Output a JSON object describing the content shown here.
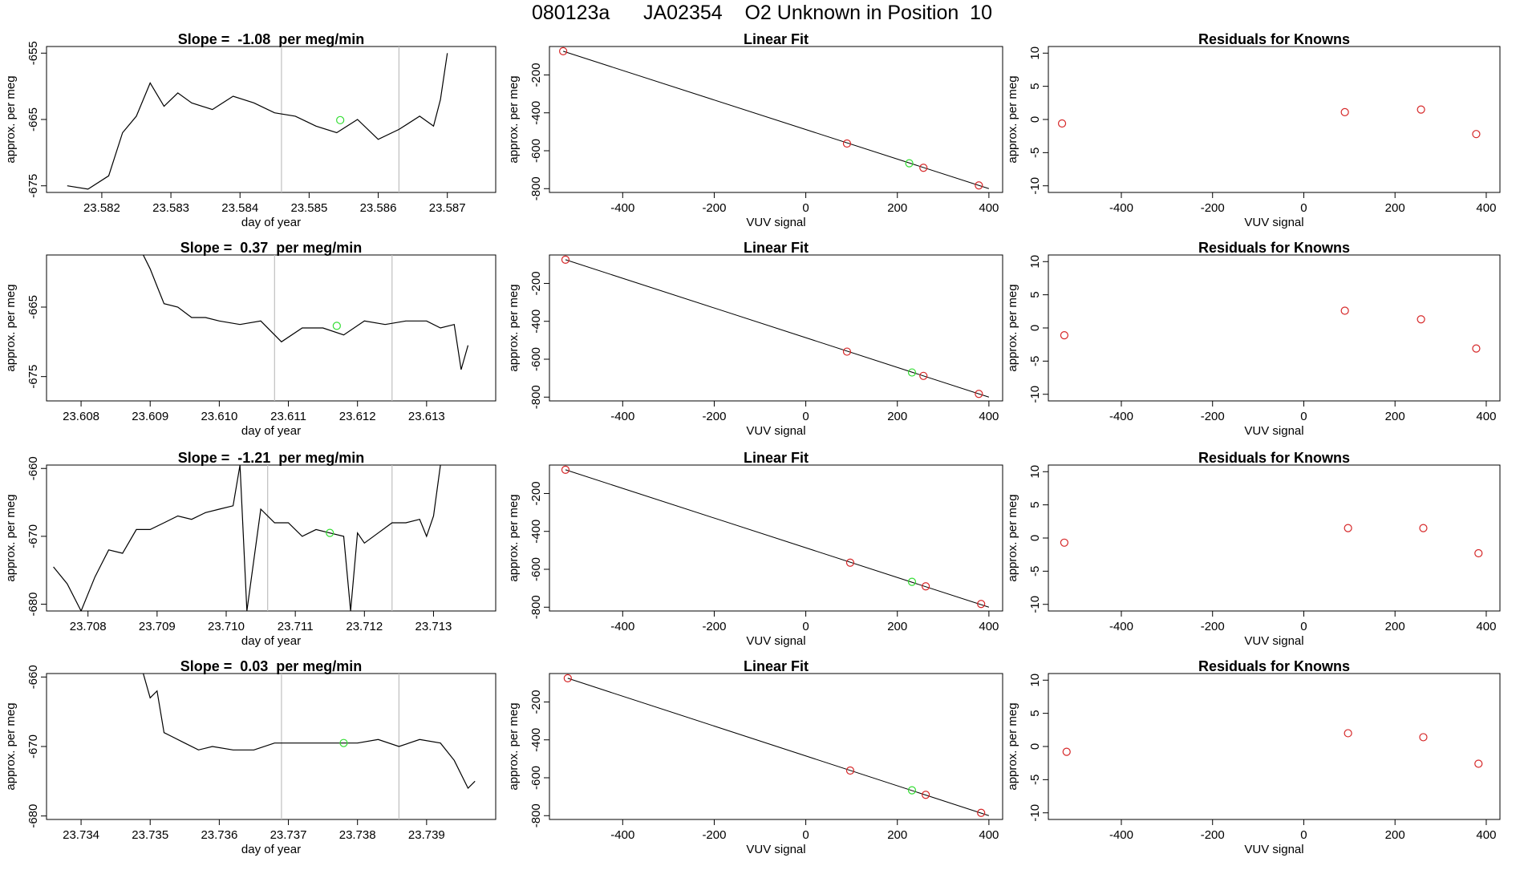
{
  "page": {
    "title": "080123a      JA02354    O2 Unknown in Position  10"
  },
  "colors": {
    "known_points": "#d62728",
    "unknown_point": "#33dd33",
    "trace": "#000000",
    "marker_lines": "#bfbfbf"
  },
  "chart_data": [
    {
      "type": "line",
      "panel": "time-series",
      "row": 1,
      "title": "Slope =  -1.08  per meg/min",
      "xlabel": "day of year",
      "ylabel": "approx. per meg",
      "xlim": [
        23.5812,
        23.5877
      ],
      "ylim": [
        -676.0,
        -654.0
      ],
      "xticks": [
        "23.582",
        "23.583",
        "23.584",
        "23.585",
        "23.586",
        "23.587"
      ],
      "yticks": [
        "-655",
        "-665",
        "-675"
      ],
      "vlines": [
        23.5846,
        23.5863
      ],
      "series": [
        {
          "x": [
            23.5815,
            23.5818,
            23.5821,
            23.5823,
            23.5825,
            23.5827,
            23.5829,
            23.5831,
            23.5833,
            23.5836,
            23.5839,
            23.5842,
            23.5845,
            23.5848,
            23.5851,
            23.5854,
            23.5857,
            23.586,
            23.5863,
            23.5866,
            23.5868,
            23.5869,
            23.587
          ],
          "y": [
            -675.0,
            -675.5,
            -673.5,
            -667.0,
            -664.5,
            -659.5,
            -663.0,
            -661.0,
            -662.5,
            -663.5,
            -661.5,
            -662.5,
            -664.0,
            -664.5,
            -666.0,
            -667.0,
            -665.0,
            -668.0,
            -666.5,
            -664.5,
            -666.0,
            -662.0,
            -655.0
          ]
        }
      ],
      "unknown_point": {
        "x": 23.58545,
        "y": -665.1
      }
    },
    {
      "type": "line",
      "panel": "time-series",
      "row": 2,
      "title": "Slope =  0.37  per meg/min",
      "xlabel": "day of year",
      "ylabel": "approx. per meg",
      "xlim": [
        23.6075,
        23.614
      ],
      "ylim": [
        -678.5,
        -657.5
      ],
      "xticks": [
        "23.608",
        "23.609",
        "23.610",
        "23.611",
        "23.612",
        "23.613"
      ],
      "yticks": [
        "-665",
        "-675"
      ],
      "vlines": [
        23.6108,
        23.6125
      ],
      "series": [
        {
          "x": [
            23.6089,
            23.609,
            23.6091,
            23.6092,
            23.6094,
            23.6096,
            23.6098,
            23.61,
            23.6103,
            23.6106,
            23.6109,
            23.6112,
            23.6115,
            23.6118,
            23.6121,
            23.6124,
            23.6127,
            23.613,
            23.6132,
            23.6134,
            23.6135,
            23.6136
          ],
          "y": [
            -657.5,
            -659.5,
            -662.0,
            -664.5,
            -665.0,
            -666.5,
            -666.5,
            -667.0,
            -667.5,
            -667.0,
            -670.0,
            -668.0,
            -668.0,
            -669.0,
            -667.0,
            -667.5,
            -667.0,
            -667.0,
            -668.0,
            -667.5,
            -674.0,
            -670.5
          ]
        }
      ],
      "unknown_point": {
        "x": 23.6117,
        "y": -667.7
      }
    },
    {
      "type": "line",
      "panel": "time-series",
      "row": 3,
      "title": "Slope =  -1.21  per meg/min",
      "xlabel": "day of year",
      "ylabel": "approx. per meg",
      "xlim": [
        23.7074,
        23.7139
      ],
      "ylim": [
        -681.0,
        -659.5
      ],
      "xticks": [
        "23.708",
        "23.709",
        "23.710",
        "23.711",
        "23.712",
        "23.713"
      ],
      "yticks": [
        "-660",
        "-670",
        "-680"
      ],
      "vlines": [
        23.7106,
        23.7124
      ],
      "series": [
        {
          "x": [
            23.7075,
            23.7077,
            23.7079,
            23.7081,
            23.7083,
            23.7085,
            23.7087,
            23.7089,
            23.7091,
            23.7093,
            23.7095,
            23.7097,
            23.7099,
            23.7101,
            23.7102,
            23.7103,
            23.7105,
            23.7107,
            23.7109,
            23.7111,
            23.7113,
            23.7115,
            23.7117,
            23.7118,
            23.7119,
            23.712,
            23.7122,
            23.7124,
            23.7126,
            23.7128,
            23.7129,
            23.713,
            23.7131
          ],
          "y": [
            -674.5,
            -677.0,
            -681.0,
            -676.0,
            -672.0,
            -672.5,
            -669.0,
            -669.0,
            -668.0,
            -667.0,
            -667.5,
            -666.5,
            -666.0,
            -665.5,
            -659.5,
            -681.0,
            -666.0,
            -668.0,
            -668.0,
            -670.0,
            -669.0,
            -669.5,
            -670.0,
            -681.0,
            -669.5,
            -671.0,
            -669.5,
            -668.0,
            -668.0,
            -667.5,
            -670.0,
            -667.0,
            -659.5
          ]
        }
      ],
      "unknown_point": {
        "x": 23.7115,
        "y": -669.5
      }
    },
    {
      "type": "line",
      "panel": "time-series",
      "row": 4,
      "title": "Slope =  0.03  per meg/min",
      "xlabel": "day of year",
      "ylabel": "approx. per meg",
      "xlim": [
        23.7335,
        23.74
      ],
      "ylim": [
        -680.5,
        -659.5
      ],
      "xticks": [
        "23.734",
        "23.735",
        "23.736",
        "23.737",
        "23.738",
        "23.739"
      ],
      "yticks": [
        "-660",
        "-670",
        "-680"
      ],
      "vlines": [
        23.7369,
        23.7386
      ],
      "series": [
        {
          "x": [
            23.7349,
            23.735,
            23.7351,
            23.7352,
            23.7353,
            23.7355,
            23.7357,
            23.7359,
            23.7362,
            23.7365,
            23.7368,
            23.7371,
            23.7374,
            23.7377,
            23.738,
            23.7383,
            23.7386,
            23.7389,
            23.7392,
            23.7394,
            23.7396,
            23.7397
          ],
          "y": [
            -659.5,
            -663.0,
            -662.0,
            -668.0,
            -668.5,
            -669.5,
            -670.5,
            -670.0,
            -670.5,
            -670.5,
            -669.5,
            -669.5,
            -669.5,
            -669.5,
            -669.5,
            -669.0,
            -670.0,
            -669.0,
            -669.5,
            -672.0,
            -676.0,
            -675.0
          ]
        }
      ],
      "unknown_point": {
        "x": 23.7378,
        "y": -669.5
      }
    },
    {
      "type": "scatter",
      "panel": "linear-fit",
      "row": 1,
      "title": "Linear Fit",
      "xlabel": "VUV signal",
      "ylabel": "approx. per meg",
      "xlim": [
        -560,
        430
      ],
      "ylim": [
        -820,
        -50
      ],
      "xticks": [
        "-400",
        "-200",
        "0",
        "200",
        "400"
      ],
      "yticks": [
        "-200",
        "-400",
        "-600",
        "-800"
      ],
      "fit_line": {
        "x": [
          -530,
          400
        ],
        "y": [
          -75,
          -800
        ]
      },
      "known_points": {
        "x": [
          -530,
          90,
          257,
          378
        ],
        "y": [
          -75,
          -562,
          -690,
          -783
        ]
      },
      "unknown_point": {
        "x": 226,
        "y": -666
      }
    },
    {
      "type": "scatter",
      "panel": "linear-fit",
      "row": 2,
      "title": "Linear Fit",
      "xlabel": "VUV signal",
      "ylabel": "approx. per meg",
      "xlim": [
        -560,
        430
      ],
      "ylim": [
        -820,
        -50
      ],
      "xticks": [
        "-400",
        "-200",
        "0",
        "200",
        "400"
      ],
      "yticks": [
        "-200",
        "-400",
        "-600",
        "-800"
      ],
      "fit_line": {
        "x": [
          -525,
          400
        ],
        "y": [
          -75,
          -800
        ]
      },
      "known_points": {
        "x": [
          -525,
          90,
          257,
          378
        ],
        "y": [
          -75,
          -560,
          -688,
          -783
        ]
      },
      "unknown_point": {
        "x": 232,
        "y": -670
      }
    },
    {
      "type": "scatter",
      "panel": "linear-fit",
      "row": 3,
      "title": "Linear Fit",
      "xlabel": "VUV signal",
      "ylabel": "approx. per meg",
      "xlim": [
        -560,
        430
      ],
      "ylim": [
        -820,
        -50
      ],
      "xticks": [
        "-400",
        "-200",
        "0",
        "200",
        "400"
      ],
      "yticks": [
        "-200",
        "-400",
        "-600",
        "-800"
      ],
      "fit_line": {
        "x": [
          -525,
          400
        ],
        "y": [
          -75,
          -800
        ]
      },
      "known_points": {
        "x": [
          -525,
          97,
          262,
          383
        ],
        "y": [
          -75,
          -565,
          -690,
          -783
        ]
      },
      "unknown_point": {
        "x": 232,
        "y": -666
      }
    },
    {
      "type": "scatter",
      "panel": "linear-fit",
      "row": 4,
      "title": "Linear Fit",
      "xlabel": "VUV signal",
      "ylabel": "approx. per meg",
      "xlim": [
        -560,
        430
      ],
      "ylim": [
        -820,
        -50
      ],
      "xticks": [
        "-400",
        "-200",
        "0",
        "200",
        "400"
      ],
      "yticks": [
        "-200",
        "-400",
        "-600",
        "-800"
      ],
      "fit_line": {
        "x": [
          -520,
          400
        ],
        "y": [
          -75,
          -800
        ]
      },
      "known_points": {
        "x": [
          -520,
          97,
          262,
          383
        ],
        "y": [
          -75,
          -562,
          -690,
          -785
        ]
      },
      "unknown_point": {
        "x": 232,
        "y": -666
      }
    },
    {
      "type": "scatter",
      "panel": "residuals",
      "row": 1,
      "title": "Residuals for Knowns",
      "xlabel": "VUV signal",
      "ylabel": "approx. per meg",
      "xlim": [
        -560,
        430
      ],
      "ylim": [
        -11,
        11
      ],
      "xticks": [
        "-400",
        "-200",
        "0",
        "200",
        "400"
      ],
      "yticks": [
        "10",
        "5",
        "0",
        "-5",
        "-10"
      ],
      "known_points": {
        "x": [
          -530,
          90,
          257,
          378
        ],
        "y": [
          -0.6,
          1.1,
          1.5,
          -2.2
        ]
      }
    },
    {
      "type": "scatter",
      "panel": "residuals",
      "row": 2,
      "title": "Residuals for Knowns",
      "xlabel": "VUV signal",
      "ylabel": "approx. per meg",
      "xlim": [
        -560,
        430
      ],
      "ylim": [
        -11,
        11
      ],
      "xticks": [
        "-400",
        "-200",
        "0",
        "200",
        "400"
      ],
      "yticks": [
        "10",
        "5",
        "0",
        "-5",
        "-10"
      ],
      "known_points": {
        "x": [
          -525,
          90,
          257,
          378
        ],
        "y": [
          -1.1,
          2.6,
          1.3,
          -3.1
        ]
      }
    },
    {
      "type": "scatter",
      "panel": "residuals",
      "row": 3,
      "title": "Residuals for Knowns",
      "xlabel": "VUV signal",
      "ylabel": "approx. per meg",
      "xlim": [
        -560,
        430
      ],
      "ylim": [
        -11,
        11
      ],
      "xticks": [
        "-400",
        "-200",
        "0",
        "200",
        "400"
      ],
      "yticks": [
        "10",
        "5",
        "0",
        "-5",
        "-10"
      ],
      "known_points": {
        "x": [
          -525,
          97,
          262,
          383
        ],
        "y": [
          -0.7,
          1.5,
          1.5,
          -2.3
        ]
      }
    },
    {
      "type": "scatter",
      "panel": "residuals",
      "row": 4,
      "title": "Residuals for Knowns",
      "xlabel": "VUV signal",
      "ylabel": "approx. per meg",
      "xlim": [
        -560,
        430
      ],
      "ylim": [
        -11,
        11
      ],
      "xticks": [
        "-400",
        "-200",
        "0",
        "200",
        "400"
      ],
      "yticks": [
        "10",
        "5",
        "0",
        "-5",
        "-10"
      ],
      "known_points": {
        "x": [
          -520,
          97,
          262,
          383
        ],
        "y": [
          -0.8,
          2.0,
          1.4,
          -2.6
        ]
      }
    }
  ]
}
